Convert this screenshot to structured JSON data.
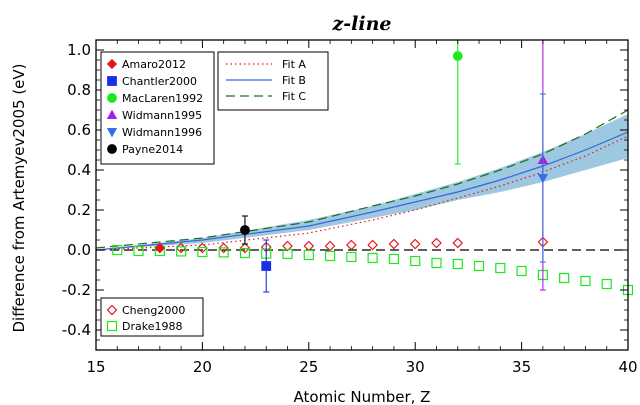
{
  "chart_data": {
    "type": "scatter",
    "title": "z-line",
    "xlabel": "Atomic Number, Z",
    "ylabel": "Difference from Artemyev2005 (eV)",
    "xlim": [
      15,
      40
    ],
    "ylim": [
      -0.5,
      1.05
    ],
    "x_ticks": [
      "15",
      "20",
      "25",
      "30",
      "35",
      "40"
    ],
    "y_ticks": [
      "-0.4",
      "-0.2",
      "0.0",
      "0.2",
      "0.4",
      "0.6",
      "0.8",
      "1.0"
    ],
    "grid": false,
    "legends": {
      "markers_top_left": [
        "Amaro2012",
        "Chantler2000",
        "MacLaren1992",
        "Widmann1995",
        "Widmann1996",
        "Payne2014"
      ],
      "fits_top": [
        "Fit A",
        "Fit B",
        "Fit C"
      ],
      "markers_bottom_left": [
        "Cheng2000",
        "Drake1988"
      ]
    },
    "measurements": [
      {
        "name": "Amaro2012",
        "color": "#e8141c",
        "marker": "diamond-filled",
        "points": [
          {
            "x": 18,
            "y": 0.01,
            "err": 0.0
          }
        ]
      },
      {
        "name": "Chantler2000",
        "color": "#1a2ee8",
        "marker": "square-filled",
        "points": [
          {
            "x": 23,
            "y": -0.08,
            "err": 0.13
          }
        ]
      },
      {
        "name": "MacLaren1992",
        "color": "#1ee81e",
        "marker": "circle-filled",
        "points": [
          {
            "x": 32,
            "y": 0.97,
            "err": 0.54
          }
        ]
      },
      {
        "name": "Widmann1995",
        "color": "#a81ee0",
        "marker": "triangle-up-filled",
        "points": [
          {
            "x": 36,
            "y": 0.45,
            "err": 0.65
          }
        ]
      },
      {
        "name": "Widmann1996",
        "color": "#3c6ee0",
        "marker": "triangle-down-filled",
        "points": [
          {
            "x": 36,
            "y": 0.36,
            "err": 0.42
          }
        ]
      },
      {
        "name": "Payne2014",
        "color": "#000000",
        "marker": "circle-filled",
        "points": [
          {
            "x": 22,
            "y": 0.1,
            "err": 0.07
          }
        ]
      }
    ],
    "theory": [
      {
        "name": "Cheng2000",
        "color": "#e8141c",
        "marker": "diamond-open",
        "x": [
          18,
          19,
          20,
          21,
          22,
          23,
          24,
          25,
          26,
          27,
          28,
          29,
          30,
          31,
          32,
          36
        ],
        "y": [
          0.01,
          0.01,
          0.01,
          0.01,
          0.01,
          0.015,
          0.02,
          0.02,
          0.02,
          0.025,
          0.025,
          0.03,
          0.03,
          0.035,
          0.035,
          0.04
        ]
      },
      {
        "name": "Drake1988",
        "color": "#1ee81e",
        "marker": "square-open",
        "x": [
          16,
          17,
          18,
          19,
          20,
          21,
          22,
          23,
          24,
          25,
          26,
          27,
          28,
          29,
          30,
          31,
          32,
          33,
          34,
          35,
          36,
          37,
          38,
          39,
          40
        ],
        "y": [
          0.0,
          -0.005,
          -0.005,
          -0.007,
          -0.01,
          -0.012,
          -0.015,
          -0.018,
          -0.02,
          -0.025,
          -0.03,
          -0.035,
          -0.04,
          -0.045,
          -0.055,
          -0.065,
          -0.07,
          -0.08,
          -0.09,
          -0.105,
          -0.125,
          -0.14,
          -0.155,
          -0.17,
          -0.2
        ]
      }
    ],
    "fits": [
      {
        "name": "Fit A",
        "color": "#e8141c",
        "style": "dotted",
        "x": [
          15,
          20,
          25,
          28,
          30,
          32,
          34,
          36,
          38,
          40
        ],
        "y": [
          0.0,
          0.025,
          0.085,
          0.15,
          0.2,
          0.26,
          0.32,
          0.39,
          0.47,
          0.57
        ]
      },
      {
        "name": "Fit B",
        "color": "#3c64d8",
        "style": "solid",
        "x": [
          15,
          20,
          25,
          28,
          30,
          32,
          34,
          36,
          38,
          40
        ],
        "y": [
          0.0,
          0.05,
          0.12,
          0.19,
          0.24,
          0.29,
          0.35,
          0.42,
          0.5,
          0.59
        ]
      },
      {
        "name": "Fit C",
        "color": "#1a6e1a",
        "style": "dashed",
        "x": [
          15,
          20,
          25,
          28,
          30,
          32,
          34,
          36,
          38,
          40
        ],
        "y": [
          0.01,
          0.06,
          0.14,
          0.22,
          0.27,
          0.33,
          0.4,
          0.48,
          0.58,
          0.7
        ]
      }
    ],
    "fit_band": {
      "color": "#8bbedc",
      "x": [
        15,
        20,
        25,
        28,
        30,
        32,
        34,
        36,
        38,
        40
      ],
      "lower": [
        0.0,
        0.035,
        0.1,
        0.16,
        0.2,
        0.25,
        0.29,
        0.34,
        0.4,
        0.46
      ],
      "upper": [
        0.0,
        0.06,
        0.15,
        0.22,
        0.28,
        0.34,
        0.41,
        0.49,
        0.58,
        0.68
      ]
    },
    "reference_line": {
      "y": 0.0,
      "style": "dashed",
      "color": "#000000"
    }
  }
}
